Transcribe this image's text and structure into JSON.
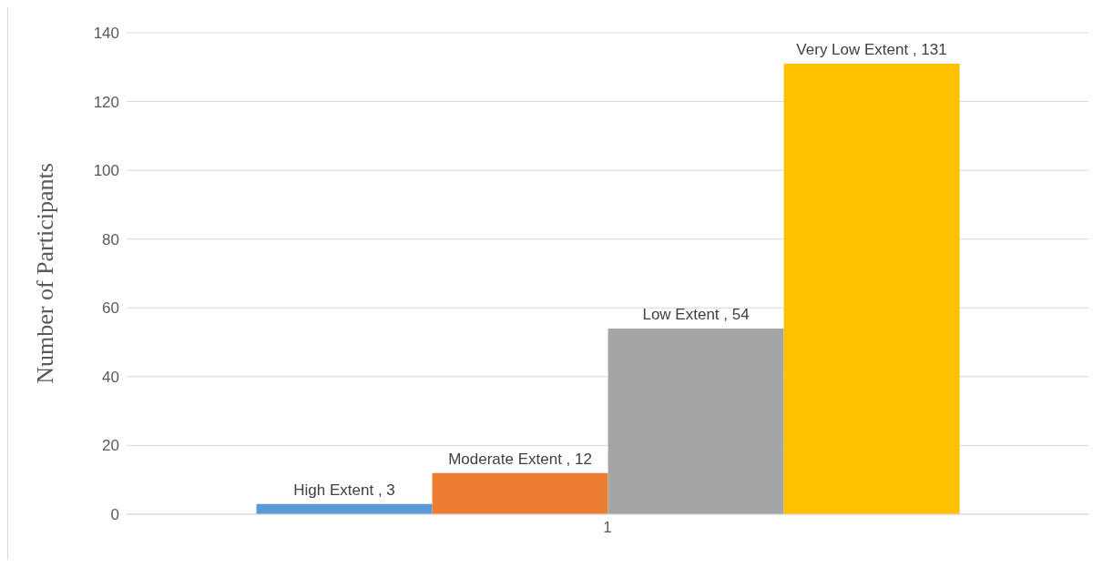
{
  "chart_data": {
    "type": "bar",
    "ylabel": "Number of Participants",
    "categories": [
      "1"
    ],
    "series": [
      {
        "color": "#5b9bd5",
        "values": [
          3
        ],
        "value_labels": [
          "High Extent , 3"
        ]
      },
      {
        "color": "#ed7d31",
        "values": [
          12
        ],
        "value_labels": [
          "Moderate Extent , 12"
        ]
      },
      {
        "color": "#a5a5a5",
        "values": [
          54
        ],
        "value_labels": [
          "Low Extent , 54"
        ]
      },
      {
        "color": "#ffc000",
        "values": [
          131
        ],
        "value_labels": [
          "Very Low Extent , 131"
        ]
      }
    ],
    "ylim": [
      0,
      140
    ],
    "yticks": [
      0,
      20,
      40,
      60,
      80,
      100,
      120,
      140
    ],
    "grid": "y",
    "legend": false
  }
}
